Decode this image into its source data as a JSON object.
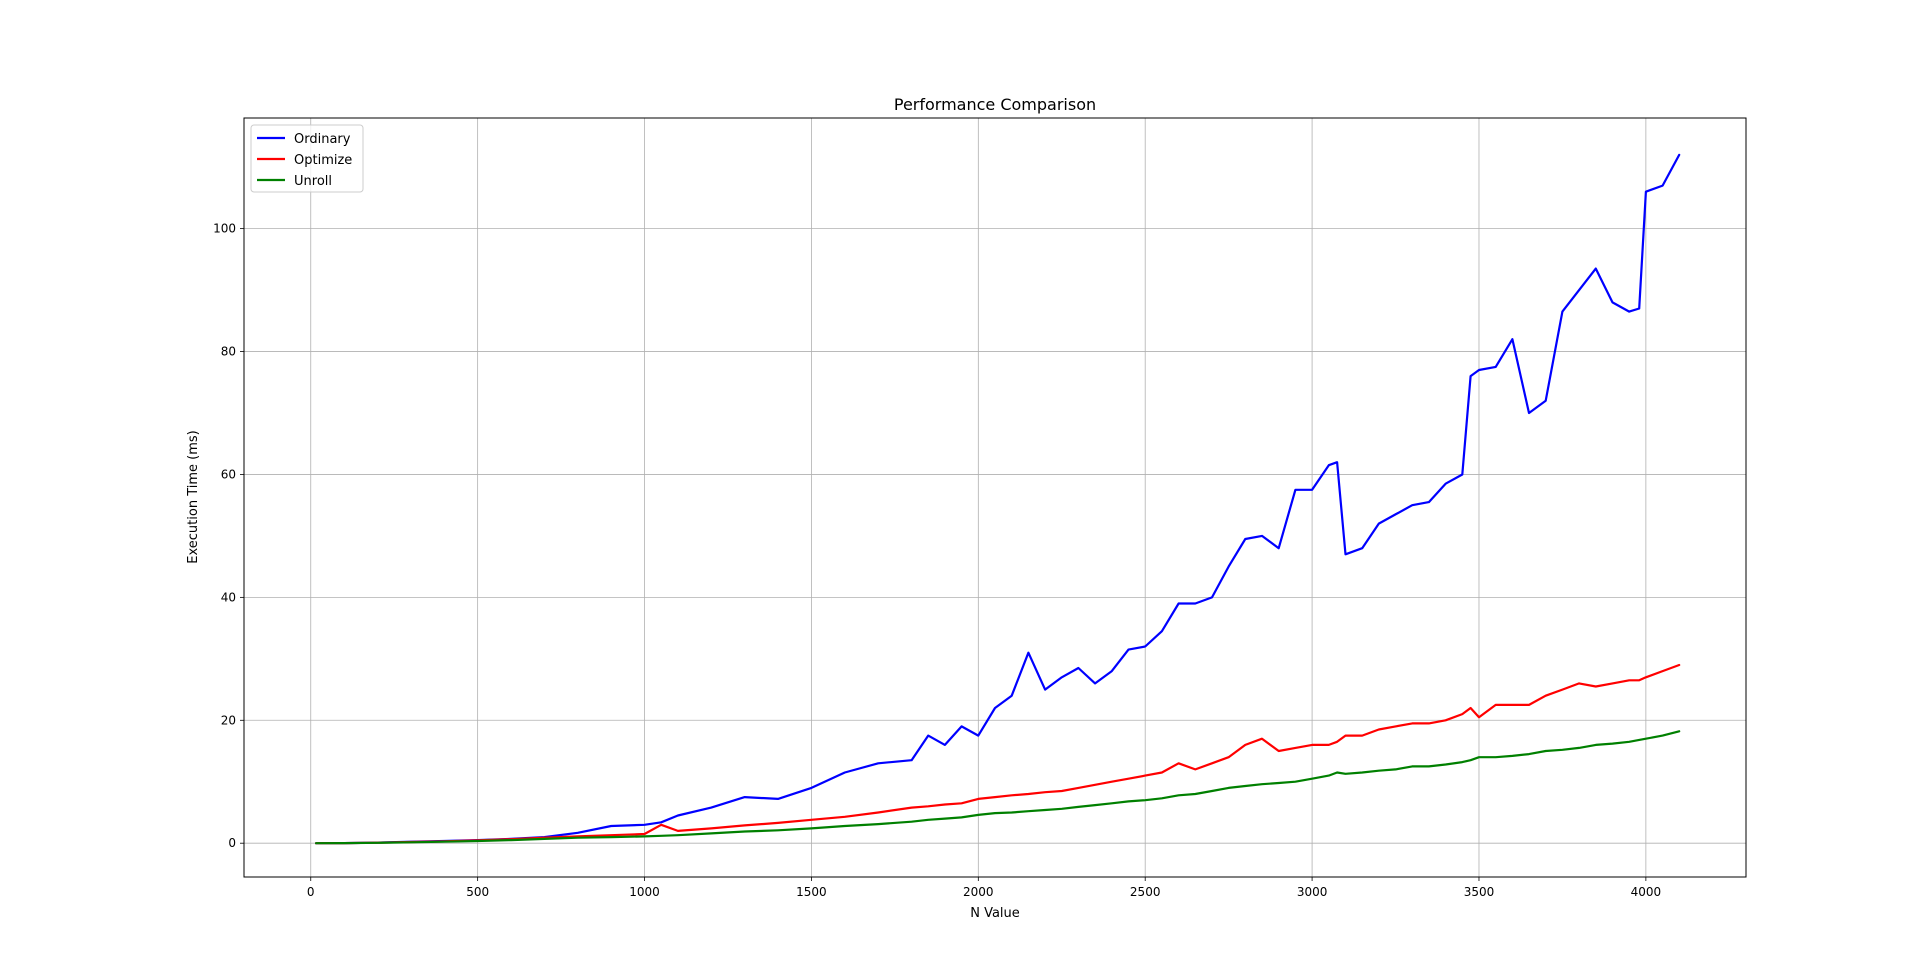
{
  "chart_data": {
    "type": "line",
    "title": "Performance Comparison",
    "xlabel": "N Value",
    "ylabel": "Execution Time (ms)",
    "xlim": [
      -200,
      4300
    ],
    "ylim": [
      -5.5,
      118
    ],
    "xticks": [
      0,
      500,
      1000,
      1500,
      2000,
      2500,
      3000,
      3500,
      4000
    ],
    "yticks": [
      0,
      20,
      40,
      60,
      80,
      100
    ],
    "grid": true,
    "legend_position": "top-left",
    "x": [
      16,
      100,
      200,
      300,
      400,
      500,
      600,
      700,
      800,
      900,
      1000,
      1050,
      1100,
      1200,
      1300,
      1400,
      1500,
      1600,
      1700,
      1800,
      1850,
      1900,
      1950,
      2000,
      2050,
      2100,
      2150,
      2200,
      2250,
      2300,
      2350,
      2400,
      2450,
      2500,
      2550,
      2600,
      2650,
      2700,
      2750,
      2800,
      2850,
      2900,
      2950,
      3000,
      3050,
      3075,
      3100,
      3150,
      3200,
      3250,
      3300,
      3350,
      3400,
      3450,
      3475,
      3500,
      3550,
      3600,
      3650,
      3700,
      3750,
      3800,
      3850,
      3900,
      3950,
      3980,
      4000,
      4050,
      4100
    ],
    "series": [
      {
        "name": "Ordinary",
        "color": "#0000ff",
        "values": [
          0.0,
          0.02,
          0.1,
          0.25,
          0.35,
          0.5,
          0.7,
          1.0,
          1.7,
          2.8,
          3.0,
          3.4,
          4.5,
          5.8,
          7.5,
          7.2,
          9.0,
          11.5,
          13.0,
          13.5,
          17.5,
          16.0,
          19.0,
          17.5,
          22.0,
          24.0,
          31.0,
          25.0,
          27.0,
          28.5,
          26.0,
          28.0,
          31.5,
          32.0,
          34.5,
          39.0,
          39.0,
          40.0,
          45.0,
          49.5,
          50.0,
          48.0,
          57.5,
          57.5,
          61.5,
          62.0,
          47.0,
          48.0,
          52.0,
          53.5,
          55.0,
          55.5,
          58.5,
          60.0,
          76.0,
          77.0,
          77.5,
          82.0,
          70.0,
          72.0,
          86.5,
          90.0,
          93.5,
          88.0,
          86.5,
          87.0,
          106.0,
          107.0,
          112.0
        ]
      },
      {
        "name": "Optimize",
        "color": "#ff0000",
        "values": [
          0.0,
          0.02,
          0.08,
          0.2,
          0.3,
          0.45,
          0.65,
          0.9,
          1.1,
          1.3,
          1.5,
          3.0,
          2.0,
          2.4,
          2.9,
          3.3,
          3.8,
          4.3,
          5.0,
          5.8,
          6.0,
          6.3,
          6.5,
          7.2,
          7.5,
          7.8,
          8.0,
          8.3,
          8.5,
          9.0,
          9.5,
          10.0,
          10.5,
          11.0,
          11.5,
          13.0,
          12.0,
          13.0,
          14.0,
          16.0,
          17.0,
          15.0,
          15.5,
          16.0,
          16.0,
          16.5,
          17.5,
          17.5,
          18.5,
          19.0,
          19.5,
          19.5,
          20.0,
          21.0,
          22.0,
          20.5,
          22.5,
          22.5,
          22.5,
          24.0,
          25.0,
          26.0,
          25.5,
          26.0,
          26.5,
          26.5,
          27.0,
          28.0,
          29.0
        ]
      },
      {
        "name": "Unroll",
        "color": "#008000",
        "values": [
          0.0,
          0.02,
          0.06,
          0.15,
          0.25,
          0.35,
          0.5,
          0.7,
          0.9,
          1.0,
          1.1,
          1.2,
          1.3,
          1.6,
          1.9,
          2.1,
          2.4,
          2.8,
          3.1,
          3.5,
          3.8,
          4.0,
          4.2,
          4.6,
          4.9,
          5.0,
          5.2,
          5.4,
          5.6,
          5.9,
          6.2,
          6.5,
          6.8,
          7.0,
          7.3,
          7.8,
          8.0,
          8.5,
          9.0,
          9.3,
          9.6,
          9.8,
          10.0,
          10.5,
          11.0,
          11.5,
          11.3,
          11.5,
          11.8,
          12.0,
          12.5,
          12.5,
          12.8,
          13.2,
          13.5,
          14.0,
          14.0,
          14.2,
          14.5,
          15.0,
          15.2,
          15.5,
          16.0,
          16.2,
          16.5,
          16.8,
          17.0,
          17.5,
          18.2
        ]
      }
    ]
  }
}
